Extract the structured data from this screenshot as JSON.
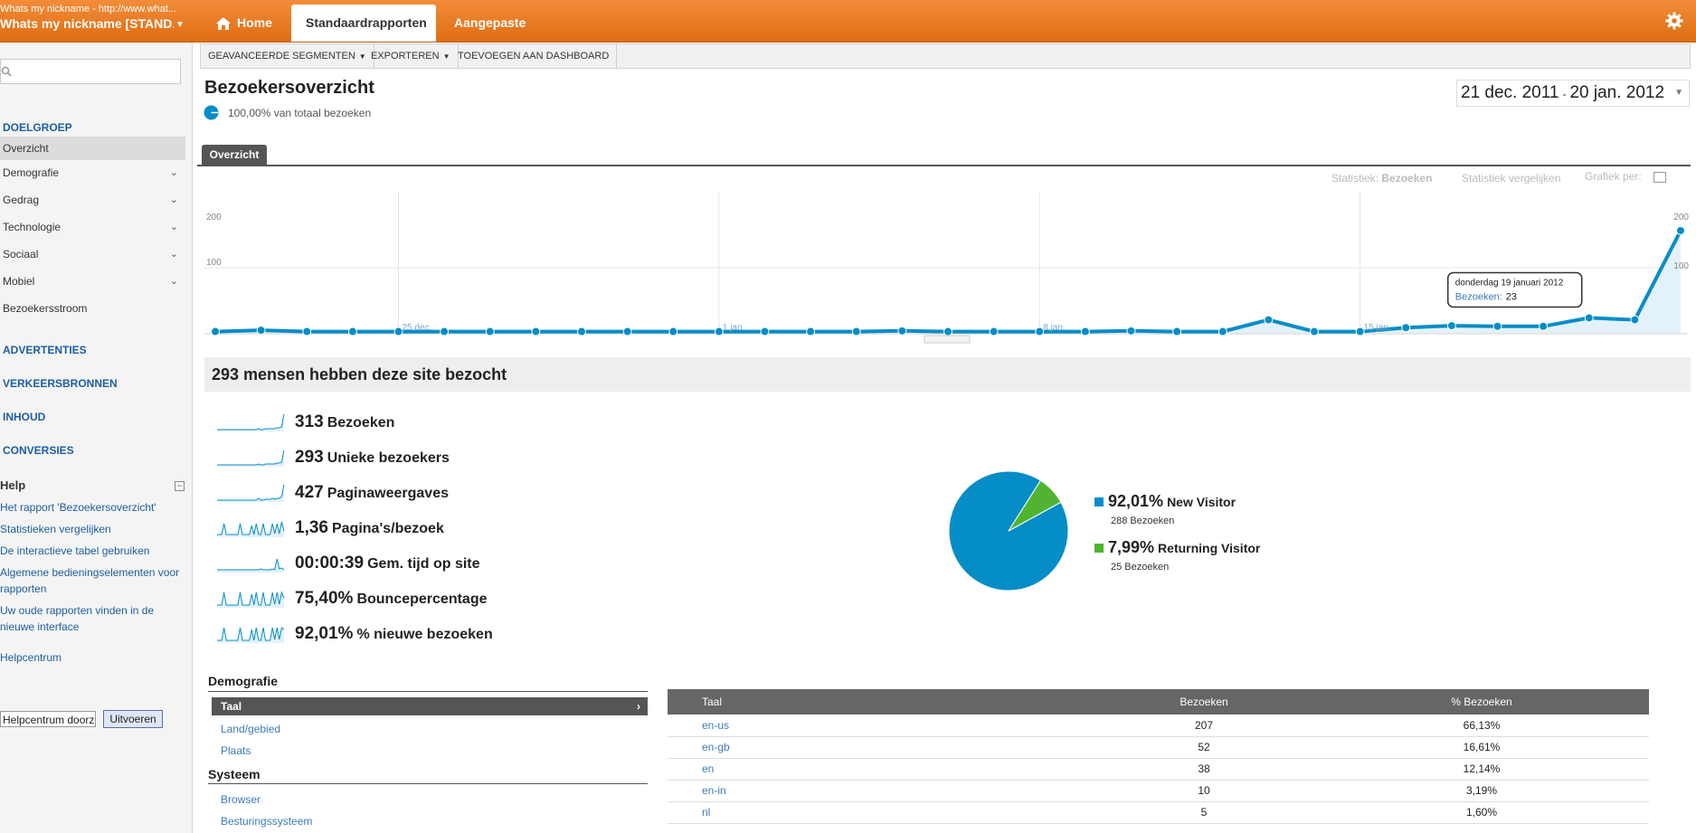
{
  "account": {
    "url_line": "Whats my nickname - http://www.what...",
    "name": "Whats my nickname [STAND..."
  },
  "nav": {
    "home": "Home",
    "standard": "Standaardrapporten",
    "custom": "Aangepaste rapporten"
  },
  "toolbar": {
    "segments": "GEAVANCEERDE SEGMENTEN",
    "export": "EXPORTEREN",
    "dashboard": "TOEVOEGEN AAN DASHBOARD"
  },
  "sidebar": {
    "search_value": "",
    "audience": "DOELGROEP",
    "items": [
      {
        "label": "Overzicht",
        "expandable": false,
        "selected": true
      },
      {
        "label": "Demografie",
        "expandable": true
      },
      {
        "label": "Gedrag",
        "expandable": true
      },
      {
        "label": "Technologie",
        "expandable": true
      },
      {
        "label": "Sociaal",
        "expandable": true
      },
      {
        "label": "Mobiel",
        "expandable": true
      },
      {
        "label": "Bezoekersstroom",
        "expandable": false
      }
    ],
    "sections": [
      "ADVERTENTIES",
      "VERKEERSBRONNEN",
      "INHOUD",
      "CONVERSIES"
    ],
    "help": {
      "title": "Help",
      "links": [
        "Het rapport 'Bezoekersoverzicht'",
        "Statistieken vergelijken",
        "De interactieve tabel gebruiken",
        "Algemene bedieningselementen voor rapporten",
        "Uw oude rapporten vinden in de nieuwe interface"
      ],
      "center": "Helpcentrum",
      "search_value": "Helpcentrum doorz",
      "go_button": "Uitvoeren"
    }
  },
  "header": {
    "title": "Bezoekersoverzicht",
    "segment": "100,00% van totaal bezoeken",
    "date_from": "21 dec. 2011",
    "date_to": "20 jan. 2012",
    "tab": "Overzicht",
    "metric_label": "Statistiek:",
    "metric_value": "Bezoeken",
    "compare": "Statistiek vergelijken",
    "graph_by": "Grafiek per:"
  },
  "chart_data": {
    "type": "line",
    "series": [
      {
        "name": "Bezoeken",
        "values": [
          2,
          4,
          2,
          2,
          2,
          2,
          2,
          2,
          2,
          2,
          2,
          2,
          2,
          2,
          2,
          3,
          2,
          2,
          2,
          2,
          3,
          2,
          2,
          20,
          2,
          2,
          8,
          11,
          10,
          10,
          23,
          20,
          157
        ]
      }
    ],
    "x_ticks": [
      {
        "label": "25 dec.",
        "index": 4
      },
      {
        "label": "1 jan.",
        "index": 11
      },
      {
        "label": "8 jan.",
        "index": 18
      },
      {
        "label": "15 jan.",
        "index": 25
      }
    ],
    "y_left_ticks": [
      "200",
      "100"
    ],
    "y_right_ticks": [
      "200",
      "100"
    ],
    "ylim": [
      0,
      200
    ],
    "tooltip": {
      "date": "donderdag 19 januari 2012",
      "label": "Bezoeken:",
      "value": "23",
      "index": 30
    },
    "color": "#058dc7"
  },
  "summary": {
    "headline": "293 mensen hebben deze site bezocht",
    "metrics": [
      {
        "value": "313",
        "label": "Bezoeken"
      },
      {
        "value": "293",
        "label": "Unieke bezoekers"
      },
      {
        "value": "427",
        "label": "Paginaweergaves"
      },
      {
        "value": "1,36",
        "label": "Pagina's/bezoek"
      },
      {
        "value": "00:00:39",
        "label": "Gem. tijd op site"
      },
      {
        "value": "75,40%",
        "label": "Bouncepercentage"
      },
      {
        "value": "92,01%",
        "label": "% nieuwe bezoeken"
      }
    ]
  },
  "pie": {
    "slices": [
      {
        "pct": "92,01%",
        "name": "New Visitor",
        "count": "288 Bezoeken",
        "value": 92.01,
        "color": "#058dc7"
      },
      {
        "pct": "7,99%",
        "name": "Returning Visitor",
        "count": "25 Bezoeken",
        "value": 7.99,
        "color": "#50b432"
      }
    ]
  },
  "demographics": {
    "title": "Demografie",
    "items": [
      "Taal",
      "Land/gebied",
      "Plaats"
    ],
    "system_title": "Systeem",
    "system_items": [
      "Browser",
      "Besturingssysteem"
    ]
  },
  "table": {
    "headers": [
      "Taal",
      "Bezoeken",
      "% Bezoeken"
    ],
    "rows": [
      {
        "lang": "en-us",
        "visits": "207",
        "pct": "66,13%"
      },
      {
        "lang": "en-gb",
        "visits": "52",
        "pct": "16,61%"
      },
      {
        "lang": "en",
        "visits": "38",
        "pct": "12,14%"
      },
      {
        "lang": "en-in",
        "visits": "10",
        "pct": "3,19%"
      },
      {
        "lang": "nl",
        "visits": "5",
        "pct": "1,60%"
      }
    ]
  }
}
